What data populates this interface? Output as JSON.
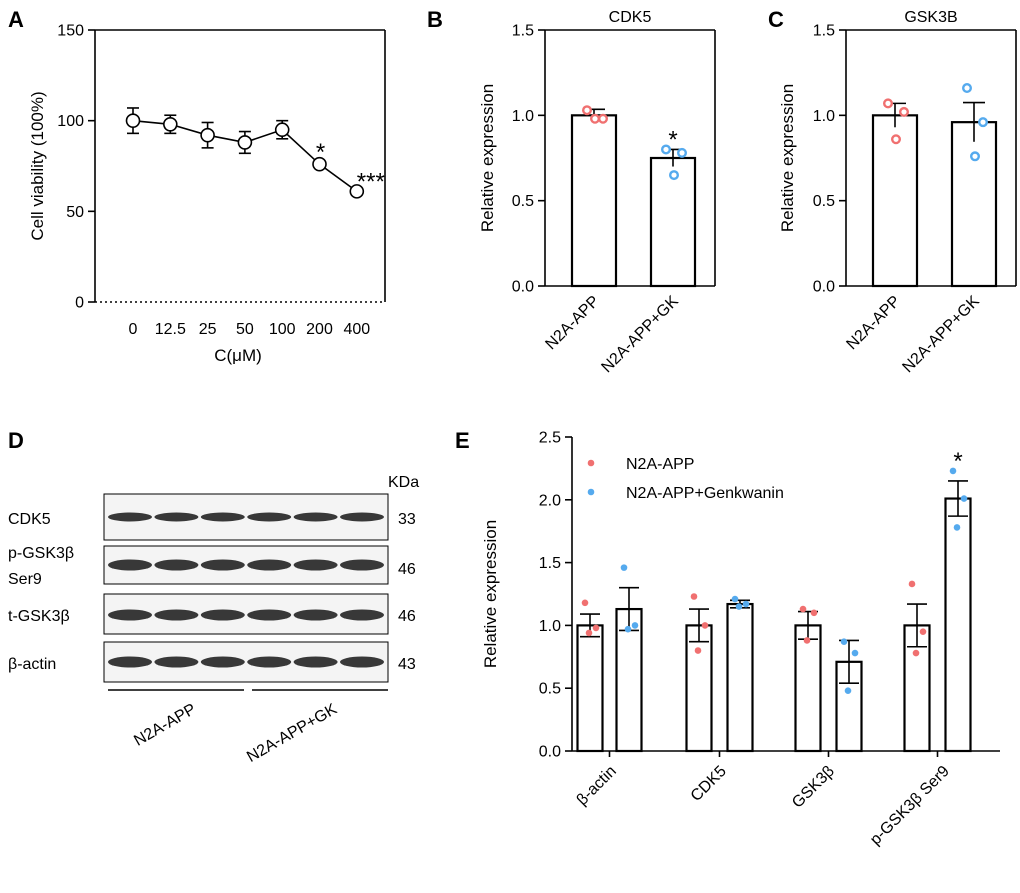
{
  "figure": {
    "panel_labels": [
      "A",
      "B",
      "C",
      "D",
      "E"
    ]
  },
  "chart_data": [
    {
      "panel": "A",
      "type": "line",
      "title": "",
      "xlabel": "C(μM)",
      "ylabel": "Cell viability (100%)",
      "categories": [
        "0",
        "12.5",
        "25",
        "50",
        "100",
        "200",
        "400"
      ],
      "values": [
        100,
        98,
        92,
        88,
        95,
        76,
        61
      ],
      "errors": [
        7,
        5,
        7,
        6,
        5,
        0,
        0
      ],
      "ylim": [
        0,
        150
      ],
      "yticks": [
        "0",
        "50",
        "100",
        "150"
      ],
      "significance": [
        {
          "category": "200",
          "label": "*"
        },
        {
          "category": "400",
          "label": "***"
        }
      ]
    },
    {
      "panel": "B",
      "type": "bar",
      "title": "CDK5",
      "ylabel": "Relative expression",
      "categories": [
        "N2A-APP",
        "N2A-APP+GK"
      ],
      "values": [
        1.0,
        0.75
      ],
      "errors": [
        0.035,
        0.05
      ],
      "points": [
        [
          1.03,
          0.98,
          0.98
        ],
        [
          0.8,
          0.78,
          0.65
        ]
      ],
      "point_colors": [
        "#f07070",
        "#55aaee"
      ],
      "ylim": [
        0,
        1.5
      ],
      "yticks": [
        "0.0",
        "0.5",
        "1.0",
        "1.5"
      ],
      "significance": [
        {
          "category": "N2A-APP+GK",
          "label": "*"
        }
      ]
    },
    {
      "panel": "C",
      "type": "bar",
      "title": "GSK3B",
      "ylabel": "Relative expression",
      "categories": [
        "N2A-APP",
        "N2A-APP+GK"
      ],
      "values": [
        1.0,
        0.96
      ],
      "errors": [
        0.07,
        0.115
      ],
      "points": [
        [
          1.07,
          1.02,
          0.86
        ],
        [
          1.16,
          0.96,
          0.76
        ]
      ],
      "point_colors": [
        "#f07070",
        "#55aaee"
      ],
      "ylim": [
        0,
        1.5
      ],
      "yticks": [
        "0.0",
        "0.5",
        "1.0",
        "1.5"
      ],
      "significance": []
    },
    {
      "panel": "E",
      "type": "bar",
      "title": "",
      "ylabel": "Relative expression",
      "categories": [
        "β-actin",
        "CDK5",
        "GSK3β",
        "p-GSK3β Ser9"
      ],
      "series": [
        {
          "name": "N2A-APP",
          "color": "#f07070",
          "values": [
            1.0,
            1.0,
            1.0,
            1.0
          ],
          "errors": [
            0.09,
            0.13,
            0.11,
            0.17
          ],
          "points": [
            [
              1.18,
              0.98,
              0.94
            ],
            [
              1.23,
              1.0,
              0.8
            ],
            [
              1.13,
              1.1,
              0.88
            ],
            [
              1.33,
              0.95,
              0.78
            ]
          ]
        },
        {
          "name": "N2A-APP+Genkwanin",
          "color": "#55aaee",
          "values": [
            1.13,
            1.17,
            0.71,
            2.01
          ],
          "errors": [
            0.17,
            0.03,
            0.17,
            0.14
          ],
          "points": [
            [
              1.46,
              1.0,
              0.97
            ],
            [
              1.21,
              1.17,
              1.15
            ],
            [
              0.87,
              0.78,
              0.48
            ],
            [
              2.23,
              2.01,
              1.78
            ]
          ]
        }
      ],
      "ylim": [
        0,
        2.5
      ],
      "yticks": [
        "0.0",
        "0.5",
        "1.0",
        "1.5",
        "2.0",
        "2.5"
      ],
      "significance": [
        {
          "category": "p-GSK3β Ser9",
          "series": "N2A-APP+Genkwanin",
          "label": "*"
        }
      ]
    }
  ],
  "blot": {
    "panel": "D",
    "unit_label": "KDa",
    "rows": [
      {
        "name": "CDK5",
        "label_lines": [
          "CDK5"
        ],
        "kda": "33"
      },
      {
        "name": "p-GSK3b",
        "label_lines": [
          "p-GSK3β",
          "Ser9"
        ],
        "kda": "46"
      },
      {
        "name": "t-GSK3b",
        "label_lines": [
          "t-GSK3β"
        ],
        "kda": "46"
      },
      {
        "name": "b-actin",
        "label_lines": [
          "β-actin"
        ],
        "kda": "43"
      }
    ],
    "group_labels": [
      "N2A-APP",
      "N2A-APP+GK"
    ],
    "lanes_per_group": 3
  }
}
